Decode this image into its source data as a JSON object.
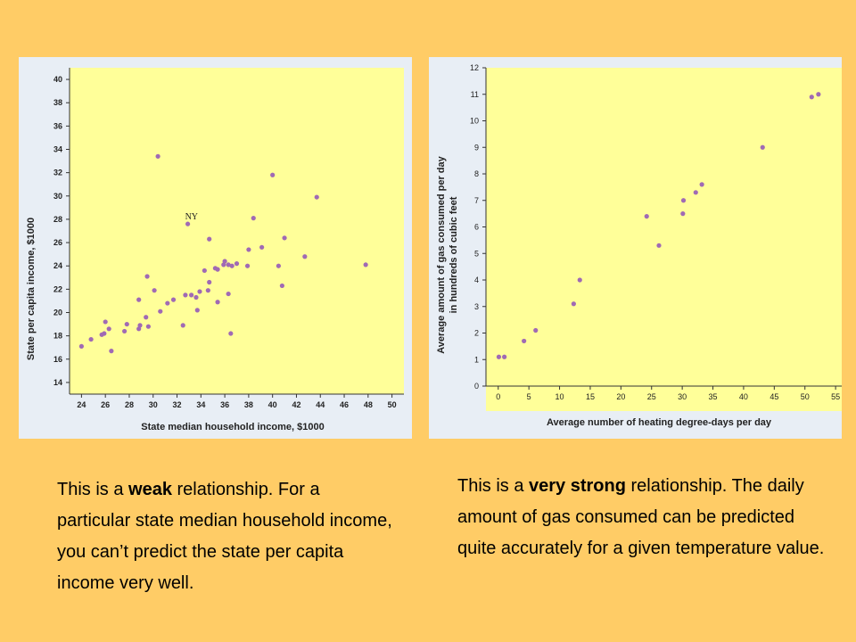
{
  "chart_data": [
    {
      "type": "scatter",
      "title": "",
      "xlabel": "State median household income, $1000",
      "ylabel": "State per capita income, $1000",
      "xlim": [
        23,
        51
      ],
      "ylim": [
        13,
        41
      ],
      "x_ticks": [
        24,
        26,
        28,
        30,
        32,
        34,
        36,
        38,
        40,
        42,
        44,
        46,
        48,
        50
      ],
      "y_ticks": [
        14,
        16,
        18,
        20,
        22,
        24,
        26,
        28,
        30,
        32,
        34,
        36,
        38,
        40
      ],
      "point_color": "#a06ab4",
      "annotations": [
        {
          "text": "NY",
          "x": 32.9,
          "y": 27.6
        }
      ],
      "points": [
        {
          "x": 24.0,
          "y": 17.1
        },
        {
          "x": 24.8,
          "y": 17.7
        },
        {
          "x": 25.7,
          "y": 18.1
        },
        {
          "x": 25.9,
          "y": 18.2
        },
        {
          "x": 26.0,
          "y": 19.2
        },
        {
          "x": 26.3,
          "y": 18.6
        },
        {
          "x": 26.5,
          "y": 16.7
        },
        {
          "x": 27.6,
          "y": 18.4
        },
        {
          "x": 27.8,
          "y": 19.0
        },
        {
          "x": 28.8,
          "y": 18.6
        },
        {
          "x": 28.8,
          "y": 21.1
        },
        {
          "x": 28.9,
          "y": 18.9
        },
        {
          "x": 29.4,
          "y": 19.6
        },
        {
          "x": 29.5,
          "y": 23.1
        },
        {
          "x": 29.6,
          "y": 18.8
        },
        {
          "x": 30.1,
          "y": 21.9
        },
        {
          "x": 30.4,
          "y": 33.4
        },
        {
          "x": 30.6,
          "y": 20.1
        },
        {
          "x": 31.2,
          "y": 20.8
        },
        {
          "x": 31.7,
          "y": 21.1
        },
        {
          "x": 32.5,
          "y": 18.9
        },
        {
          "x": 32.7,
          "y": 21.5
        },
        {
          "x": 32.9,
          "y": 27.6
        },
        {
          "x": 33.2,
          "y": 21.5
        },
        {
          "x": 33.6,
          "y": 21.3
        },
        {
          "x": 33.7,
          "y": 20.2
        },
        {
          "x": 33.9,
          "y": 21.8
        },
        {
          "x": 34.3,
          "y": 23.6
        },
        {
          "x": 34.6,
          "y": 21.9
        },
        {
          "x": 34.7,
          "y": 22.6
        },
        {
          "x": 34.7,
          "y": 26.3
        },
        {
          "x": 35.2,
          "y": 23.8
        },
        {
          "x": 35.4,
          "y": 20.9
        },
        {
          "x": 35.4,
          "y": 23.7
        },
        {
          "x": 35.9,
          "y": 24.1
        },
        {
          "x": 36.0,
          "y": 24.4
        },
        {
          "x": 36.3,
          "y": 24.1
        },
        {
          "x": 36.3,
          "y": 21.6
        },
        {
          "x": 36.5,
          "y": 18.2
        },
        {
          "x": 36.6,
          "y": 24.0
        },
        {
          "x": 37.0,
          "y": 24.2
        },
        {
          "x": 37.9,
          "y": 24.0
        },
        {
          "x": 38.0,
          "y": 25.4
        },
        {
          "x": 38.4,
          "y": 28.1
        },
        {
          "x": 39.1,
          "y": 25.6
        },
        {
          "x": 40.0,
          "y": 31.8
        },
        {
          "x": 40.5,
          "y": 24.0
        },
        {
          "x": 40.8,
          "y": 22.3
        },
        {
          "x": 41.0,
          "y": 26.4
        },
        {
          "x": 42.7,
          "y": 24.8
        },
        {
          "x": 43.7,
          "y": 29.9
        },
        {
          "x": 47.8,
          "y": 24.1
        }
      ]
    },
    {
      "type": "scatter",
      "title": "",
      "xlabel": "Average number of heating degree-days per day",
      "ylabel": "Average amount of gas consumed per day in hundreds of cubic feet",
      "ylabel_lines": [
        "Average amount of gas consumed per day",
        "in hundreds of cubic feet"
      ],
      "xlim": [
        -2,
        56
      ],
      "ylim": [
        0,
        12
      ],
      "x_ticks": [
        0,
        5,
        10,
        15,
        20,
        25,
        30,
        35,
        40,
        45,
        50,
        55
      ],
      "y_ticks": [
        0,
        1,
        2,
        3,
        4,
        5,
        6,
        7,
        8,
        9,
        10,
        11,
        12
      ],
      "point_color": "#a06ab4",
      "points": [
        {
          "x": 0.1,
          "y": 1.1
        },
        {
          "x": 1.0,
          "y": 1.1
        },
        {
          "x": 4.2,
          "y": 1.7
        },
        {
          "x": 6.1,
          "y": 2.1
        },
        {
          "x": 12.3,
          "y": 3.1
        },
        {
          "x": 13.3,
          "y": 4.0
        },
        {
          "x": 24.2,
          "y": 6.4
        },
        {
          "x": 26.2,
          "y": 5.3
        },
        {
          "x": 30.1,
          "y": 6.5
        },
        {
          "x": 30.2,
          "y": 7.0
        },
        {
          "x": 32.2,
          "y": 7.3
        },
        {
          "x": 33.2,
          "y": 7.6
        },
        {
          "x": 43.1,
          "y": 9.0
        },
        {
          "x": 51.1,
          "y": 10.9
        },
        {
          "x": 52.2,
          "y": 11.0
        }
      ]
    }
  ],
  "captions": {
    "left": {
      "before": "This is a ",
      "bold": "weak",
      "after": " relationship. For a particular state median household income, you can’t predict the state per capita income very well."
    },
    "right": {
      "before": "This is a ",
      "bold": "very strong",
      "after": " relationship. The daily amount of gas consumed can be predicted quite accurately for a given temperature value."
    }
  }
}
